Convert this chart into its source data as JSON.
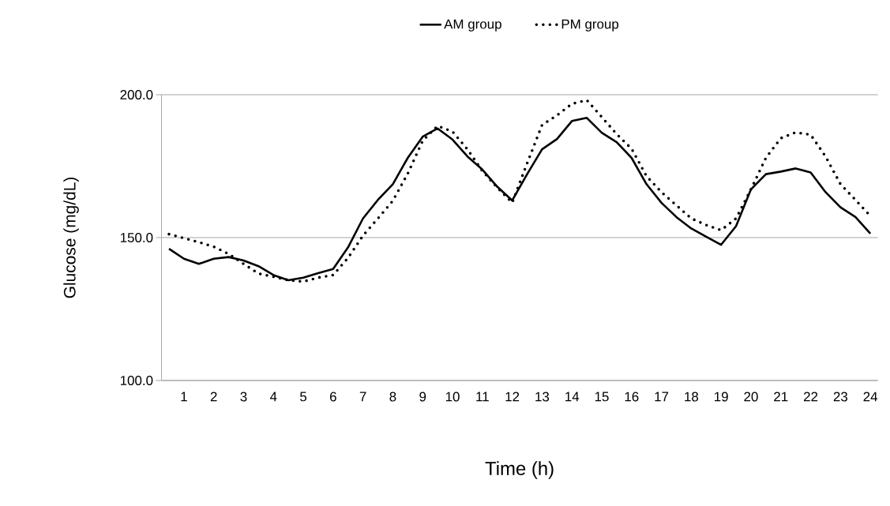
{
  "chart_data": {
    "type": "line",
    "xlabel": "Time  (h)",
    "ylabel": "Glucose (mg/dL)",
    "categories": [
      null,
      "1",
      null,
      "2",
      null,
      "3",
      null,
      "4",
      null,
      "5",
      null,
      "6",
      null,
      "7",
      null,
      "8",
      null,
      "9",
      null,
      "10",
      null,
      "11",
      null,
      "12",
      null,
      "13",
      null,
      "14",
      null,
      "15",
      null,
      "16",
      null,
      "17",
      null,
      "18",
      null,
      "19",
      null,
      "20",
      null,
      "21",
      null,
      "22",
      null,
      "23",
      null,
      "24"
    ],
    "series": [
      {
        "name": "AM group",
        "color": "#000000",
        "line_style": "solid",
        "values": [
          146.1,
          142.6,
          140.8,
          142.6,
          143.2,
          142.0,
          140.0,
          136.9,
          135.1,
          136.0,
          137.6,
          139.0,
          146.6,
          156.7,
          163.2,
          168.7,
          177.9,
          185.3,
          188.2,
          184.3,
          178.4,
          173.8,
          167.8,
          163.0,
          172.2,
          180.9,
          184.5,
          190.8,
          191.9,
          186.7,
          183.4,
          177.9,
          168.7,
          162.2,
          157.2,
          153.2,
          150.3,
          147.5,
          154.0,
          166.9,
          172.2,
          173.1,
          174.2,
          172.8,
          165.9,
          160.6,
          157.2,
          151.4
        ]
      },
      {
        "name": "PM group",
        "color": "#000000",
        "line_style": "dotted",
        "values": [
          151.2,
          149.8,
          148.4,
          146.8,
          144.3,
          140.8,
          137.4,
          136.3,
          135.1,
          134.6,
          136.0,
          136.9,
          142.9,
          150.7,
          156.7,
          162.9,
          172.4,
          183.9,
          189.1,
          187.1,
          180.9,
          173.3,
          167.5,
          162.2,
          176.0,
          189.4,
          192.8,
          196.8,
          198.1,
          192.2,
          186.2,
          181.1,
          171.5,
          165.9,
          161.3,
          156.7,
          154.4,
          152.6,
          156.7,
          166.9,
          177.9,
          184.8,
          186.8,
          186.0,
          178.4,
          168.7,
          163.2,
          157.6
        ]
      }
    ],
    "ylim": [
      100,
      200
    ],
    "yticks": [
      {
        "value": 100,
        "label": "100.0"
      },
      {
        "value": 150,
        "label": "150.0"
      },
      {
        "value": 200,
        "label": "200.0"
      }
    ],
    "grid": "y",
    "legend": "top"
  }
}
